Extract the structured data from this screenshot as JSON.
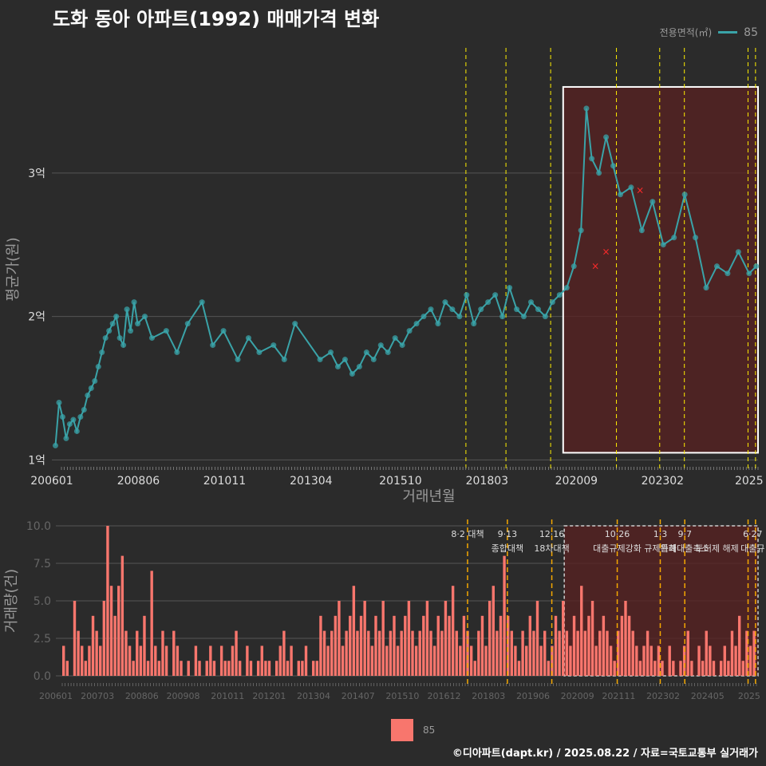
{
  "title": "도화 동아 아파트(1992) 매매가격 변화",
  "legend": {
    "title": "전용면적(㎡)",
    "series_label": "85"
  },
  "bar_legend_label": "85",
  "credit": "©디아파트(dapt.kr) / 2025.08.22 / 자료=국토교통부 실거래가",
  "colors": {
    "background": "#2b2b2b",
    "line": "#3aa3a8",
    "bar": "#f8766d",
    "highlight": "#5a2222",
    "policy": "#ffee00",
    "policy_bottom": "#f5a800",
    "grid": "#555555"
  },
  "chart_data": [
    {
      "type": "line",
      "title": "도화 동아 아파트(1992) 매매가격 변화",
      "xlabel": "거래년월",
      "ylabel": "평균가(원)",
      "x_range": [
        2006.0,
        2025.75
      ],
      "ylim": [
        0.98,
        3.9
      ],
      "y_ticks": [
        1,
        2,
        3
      ],
      "y_tick_labels": [
        "1억",
        "2억",
        "3억"
      ],
      "x_ticks": [
        2006.0,
        2008.42,
        2010.83,
        2013.25,
        2015.75,
        2018.17,
        2020.67,
        2023.08,
        2025.5
      ],
      "x_tick_labels": [
        "200601",
        "200806",
        "201011",
        "201304",
        "201510",
        "201803",
        "202009",
        "202302",
        "2025"
      ],
      "highlight_range": [
        2020.3,
        2025.75
      ],
      "highlight_y": [
        1.05,
        3.6
      ],
      "policy_lines": [
        2017.58,
        2018.7,
        2019.95,
        2021.79,
        2023.0,
        2023.69,
        2025.47,
        2025.68
      ],
      "series": [
        {
          "name": "85",
          "x": [
            2006.1,
            2006.2,
            2006.3,
            2006.4,
            2006.5,
            2006.6,
            2006.7,
            2006.8,
            2006.9,
            2007.0,
            2007.1,
            2007.2,
            2007.3,
            2007.4,
            2007.5,
            2007.6,
            2007.7,
            2007.8,
            2007.9,
            2008.0,
            2008.1,
            2008.2,
            2008.3,
            2008.4,
            2008.6,
            2008.8,
            2009.2,
            2009.5,
            2009.8,
            2010.2,
            2010.5,
            2010.8,
            2011.2,
            2011.5,
            2011.8,
            2012.2,
            2012.5,
            2012.8,
            2013.5,
            2013.8,
            2014.0,
            2014.2,
            2014.4,
            2014.6,
            2014.8,
            2015.0,
            2015.2,
            2015.4,
            2015.6,
            2015.8,
            2016.0,
            2016.2,
            2016.4,
            2016.6,
            2016.8,
            2017.0,
            2017.2,
            2017.4,
            2017.6,
            2017.8,
            2018.0,
            2018.2,
            2018.4,
            2018.6,
            2018.8,
            2019.0,
            2019.2,
            2019.4,
            2019.6,
            2019.8,
            2020.0,
            2020.2,
            2020.4,
            2020.6,
            2020.8,
            2020.95,
            2021.1,
            2021.3,
            2021.5,
            2021.7,
            2021.9,
            2022.2,
            2022.5,
            2022.8,
            2023.1,
            2023.4,
            2023.7,
            2024.0,
            2024.3,
            2024.6,
            2024.9,
            2025.2,
            2025.5,
            2025.7
          ],
          "y": [
            1.1,
            1.4,
            1.3,
            1.15,
            1.25,
            1.28,
            1.2,
            1.3,
            1.35,
            1.45,
            1.5,
            1.55,
            1.65,
            1.75,
            1.85,
            1.9,
            1.95,
            2.0,
            1.85,
            1.8,
            2.05,
            1.9,
            2.1,
            1.95,
            2.0,
            1.85,
            1.9,
            1.75,
            1.95,
            2.1,
            1.8,
            1.9,
            1.7,
            1.85,
            1.75,
            1.8,
            1.7,
            1.95,
            1.7,
            1.75,
            1.65,
            1.7,
            1.6,
            1.65,
            1.75,
            1.7,
            1.8,
            1.75,
            1.85,
            1.8,
            1.9,
            1.95,
            2.0,
            2.05,
            1.95,
            2.1,
            2.05,
            2.0,
            2.15,
            1.95,
            2.05,
            2.1,
            2.15,
            2.0,
            2.2,
            2.05,
            2.0,
            2.1,
            2.05,
            2.0,
            2.1,
            2.15,
            2.2,
            2.35,
            2.6,
            3.45,
            3.1,
            3.0,
            3.25,
            3.05,
            2.85,
            2.9,
            2.6,
            2.8,
            2.5,
            2.55,
            2.85,
            2.55,
            2.2,
            2.35,
            2.3,
            2.45,
            2.3,
            2.35
          ]
        }
      ],
      "outliers": [
        [
          2021.5,
          2.45
        ],
        [
          2022.45,
          2.88
        ],
        [
          2021.2,
          2.35
        ]
      ]
    },
    {
      "type": "bar",
      "ylabel": "거래량(건)",
      "ylim": [
        0,
        10
      ],
      "y_ticks": [
        0,
        2.5,
        5,
        7.5,
        10
      ],
      "y_tick_labels": [
        "0.0",
        "2.5",
        "5.0",
        "7.5",
        "10.0"
      ],
      "x_tick_labels": [
        "200601",
        "200703",
        "200806",
        "200908",
        "201011",
        "201201",
        "201304",
        "201407",
        "201510",
        "201612",
        "201803",
        "201906",
        "202009",
        "202111",
        "202302",
        "202405",
        "2025"
      ],
      "x_ticks": [
        2006.0,
        2007.17,
        2008.42,
        2009.58,
        2010.83,
        2012.0,
        2013.25,
        2014.5,
        2015.75,
        2016.92,
        2018.17,
        2019.42,
        2020.67,
        2021.83,
        2023.08,
        2024.33,
        2025.5
      ],
      "highlight_range": [
        2020.3,
        2025.75
      ],
      "policy_lines": [
        2017.58,
        2018.7,
        2019.95,
        2021.79,
        2023.0,
        2023.69,
        2025.47,
        2025.68
      ],
      "policy_labels": [
        {
          "x": 2017.58,
          "date": "8·2 대책",
          "text": ""
        },
        {
          "x": 2018.7,
          "date": "9·13",
          "text": "종합대책"
        },
        {
          "x": 2019.95,
          "date": "12·16",
          "text": "18차대책"
        },
        {
          "x": 2021.79,
          "date": "10·26",
          "text": "대출규제강화"
        },
        {
          "x": 2023.0,
          "date": "1·3",
          "text": "규제완화"
        },
        {
          "x": 2023.69,
          "date": "9·7",
          "text": "특례대출축소"
        },
        {
          "x": 2024.6,
          "date": "",
          "text": "토허제 해제"
        },
        {
          "x": 2025.6,
          "date": "6·27",
          "text": "대출규"
        }
      ],
      "values": [
        2,
        1,
        0,
        5,
        3,
        2,
        1,
        2,
        4,
        3,
        2,
        5,
        10,
        6,
        4,
        6,
        8,
        3,
        2,
        1,
        3,
        2,
        4,
        1,
        7,
        2,
        1,
        3,
        2,
        0,
        3,
        2,
        1,
        0,
        1,
        0,
        2,
        1,
        0,
        1,
        2,
        1,
        0,
        2,
        1,
        1,
        2,
        3,
        1,
        0,
        2,
        1,
        0,
        1,
        2,
        1,
        1,
        0,
        1,
        2,
        3,
        1,
        2,
        0,
        1,
        1,
        2,
        0,
        1,
        1,
        4,
        3,
        2,
        3,
        4,
        5,
        2,
        3,
        4,
        6,
        3,
        4,
        5,
        3,
        2,
        4,
        3,
        5,
        2,
        3,
        4,
        2,
        3,
        4,
        5,
        3,
        2,
        3,
        4,
        5,
        3,
        2,
        4,
        3,
        5,
        4,
        6,
        3,
        2,
        4,
        3,
        2,
        1,
        3,
        4,
        2,
        5,
        6,
        3,
        4,
        8,
        4,
        3,
        2,
        1,
        3,
        2,
        4,
        3,
        5,
        2,
        3,
        1,
        2,
        4,
        3,
        5,
        3,
        2,
        4,
        3,
        6,
        3,
        4,
        5,
        2,
        3,
        4,
        3,
        2,
        1,
        3,
        4,
        5,
        4,
        3,
        2,
        1,
        2,
        3,
        2,
        1,
        2,
        1,
        0,
        2,
        1,
        0,
        1,
        2,
        3,
        1,
        0,
        2,
        1,
        3,
        2,
        1,
        0,
        1,
        2,
        1,
        3,
        2,
        4,
        1,
        3,
        2,
        3
      ]
    }
  ]
}
